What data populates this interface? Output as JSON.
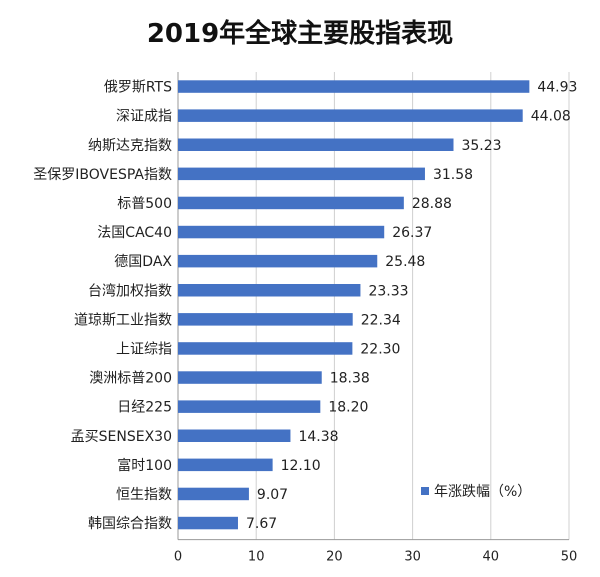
{
  "chart_data": {
    "type": "bar",
    "orientation": "horizontal",
    "title": "2019年全球主要股指表现",
    "categories": [
      "俄罗斯RTS",
      "深证成指",
      "纳斯达克指数",
      "圣保罗IBOVESPA指数",
      "标普500",
      "法国CAC40",
      "德国DAX",
      "台湾加权指数",
      "道琼斯工业指数",
      "上证综指",
      "澳洲标普200",
      "日经225",
      "孟买SENSEX30",
      "富时100",
      "恒生指数",
      "韩国综合指数"
    ],
    "series": [
      {
        "name": "年涨跌幅（%）",
        "values": [
          44.93,
          44.08,
          35.23,
          31.58,
          28.88,
          26.37,
          25.48,
          23.33,
          22.34,
          22.3,
          18.38,
          18.2,
          14.38,
          12.1,
          9.07,
          7.67
        ],
        "labels": [
          "44.93",
          "44.08",
          "35.23",
          "31.58",
          "28.88",
          "26.37",
          "25.48",
          "23.33",
          "22.34",
          "22.30",
          "18.38",
          "18.20",
          "14.38",
          "12.10",
          "9.07",
          "7.67"
        ]
      }
    ],
    "xlim": [
      0,
      50
    ],
    "xticks": [
      "0",
      "10",
      "20",
      "30",
      "40",
      "50"
    ],
    "legend_position": "bottom-right",
    "bar_color": "#4472c4"
  }
}
